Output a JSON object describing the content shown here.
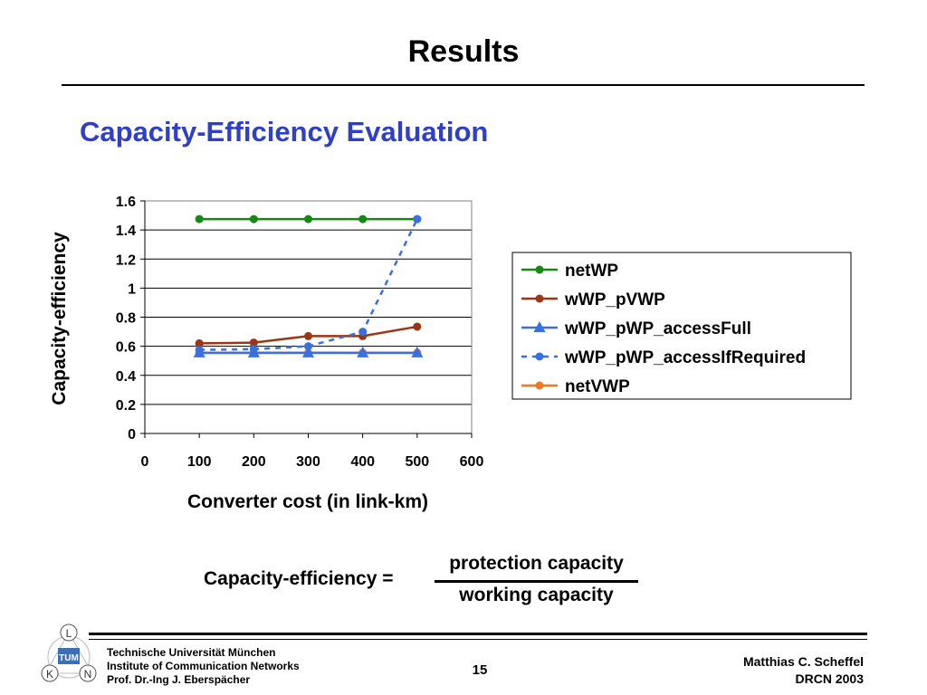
{
  "slide": {
    "title": "Results",
    "subtitle": "Capacity-Efficiency Evaluation"
  },
  "chart_data": {
    "type": "line",
    "xlabel": "Converter cost (in link-km)",
    "ylabel": "Capacity-efficiency",
    "xlim": [
      0,
      600
    ],
    "ylim": [
      0,
      1.6
    ],
    "x_ticks": [
      0,
      100,
      200,
      300,
      400,
      500,
      600
    ],
    "y_ticks": [
      0,
      0.2,
      0.4,
      0.6,
      0.8,
      1,
      1.2,
      1.4,
      1.6
    ],
    "x_tick_labels": [
      "0",
      "100",
      "200",
      "300",
      "400",
      "500",
      "600"
    ],
    "y_tick_labels": [
      "0",
      "0.2",
      "0.4",
      "0.6",
      "0.8",
      "1",
      "1.2",
      "1.4",
      "1.6"
    ],
    "grid": "horizontal",
    "legend": "right",
    "x": [
      100,
      200,
      300,
      400,
      500
    ],
    "series": [
      {
        "name": "netWP",
        "values": [
          1.475,
          1.475,
          1.475,
          1.475,
          1.475
        ],
        "color": "#128a12",
        "dash": "solid",
        "marker": "circle"
      },
      {
        "name": "wWP_pVWP",
        "values": [
          0.62,
          0.625,
          0.67,
          0.67,
          0.735
        ],
        "color": "#9b3614",
        "dash": "solid",
        "marker": "circle"
      },
      {
        "name": "wWP_pWP_accessFull",
        "values": [
          0.555,
          0.555,
          0.555,
          0.555,
          0.555
        ],
        "color": "#3a6fe0",
        "dash": "solid",
        "marker": "triangle"
      },
      {
        "name": "wWP_pWP_accessIfRequired",
        "values": [
          0.575,
          0.58,
          0.6,
          0.7,
          1.475
        ],
        "color": "#3a6fe0",
        "dash": "dashed",
        "marker": "circle"
      },
      {
        "name": "netVWP",
        "values": [
          0.555,
          0.555,
          0.555,
          0.555,
          0.555
        ],
        "color": "#f0781e",
        "dash": "solid",
        "marker": "circle"
      }
    ]
  },
  "formula": {
    "lhs": "Capacity-efficiency =",
    "numerator": "protection capacity",
    "denominator": "working capacity"
  },
  "footer": {
    "lines": [
      "Technische Universität München",
      "Institute of Communication Networks",
      "Prof. Dr.-Ing J. Eberspächer"
    ],
    "page": "15",
    "author": "Matthias C. Scheffel",
    "event": "DRCN 2003",
    "logo_letters": [
      "L",
      "K",
      "N"
    ],
    "logo_mark": "TUM"
  }
}
